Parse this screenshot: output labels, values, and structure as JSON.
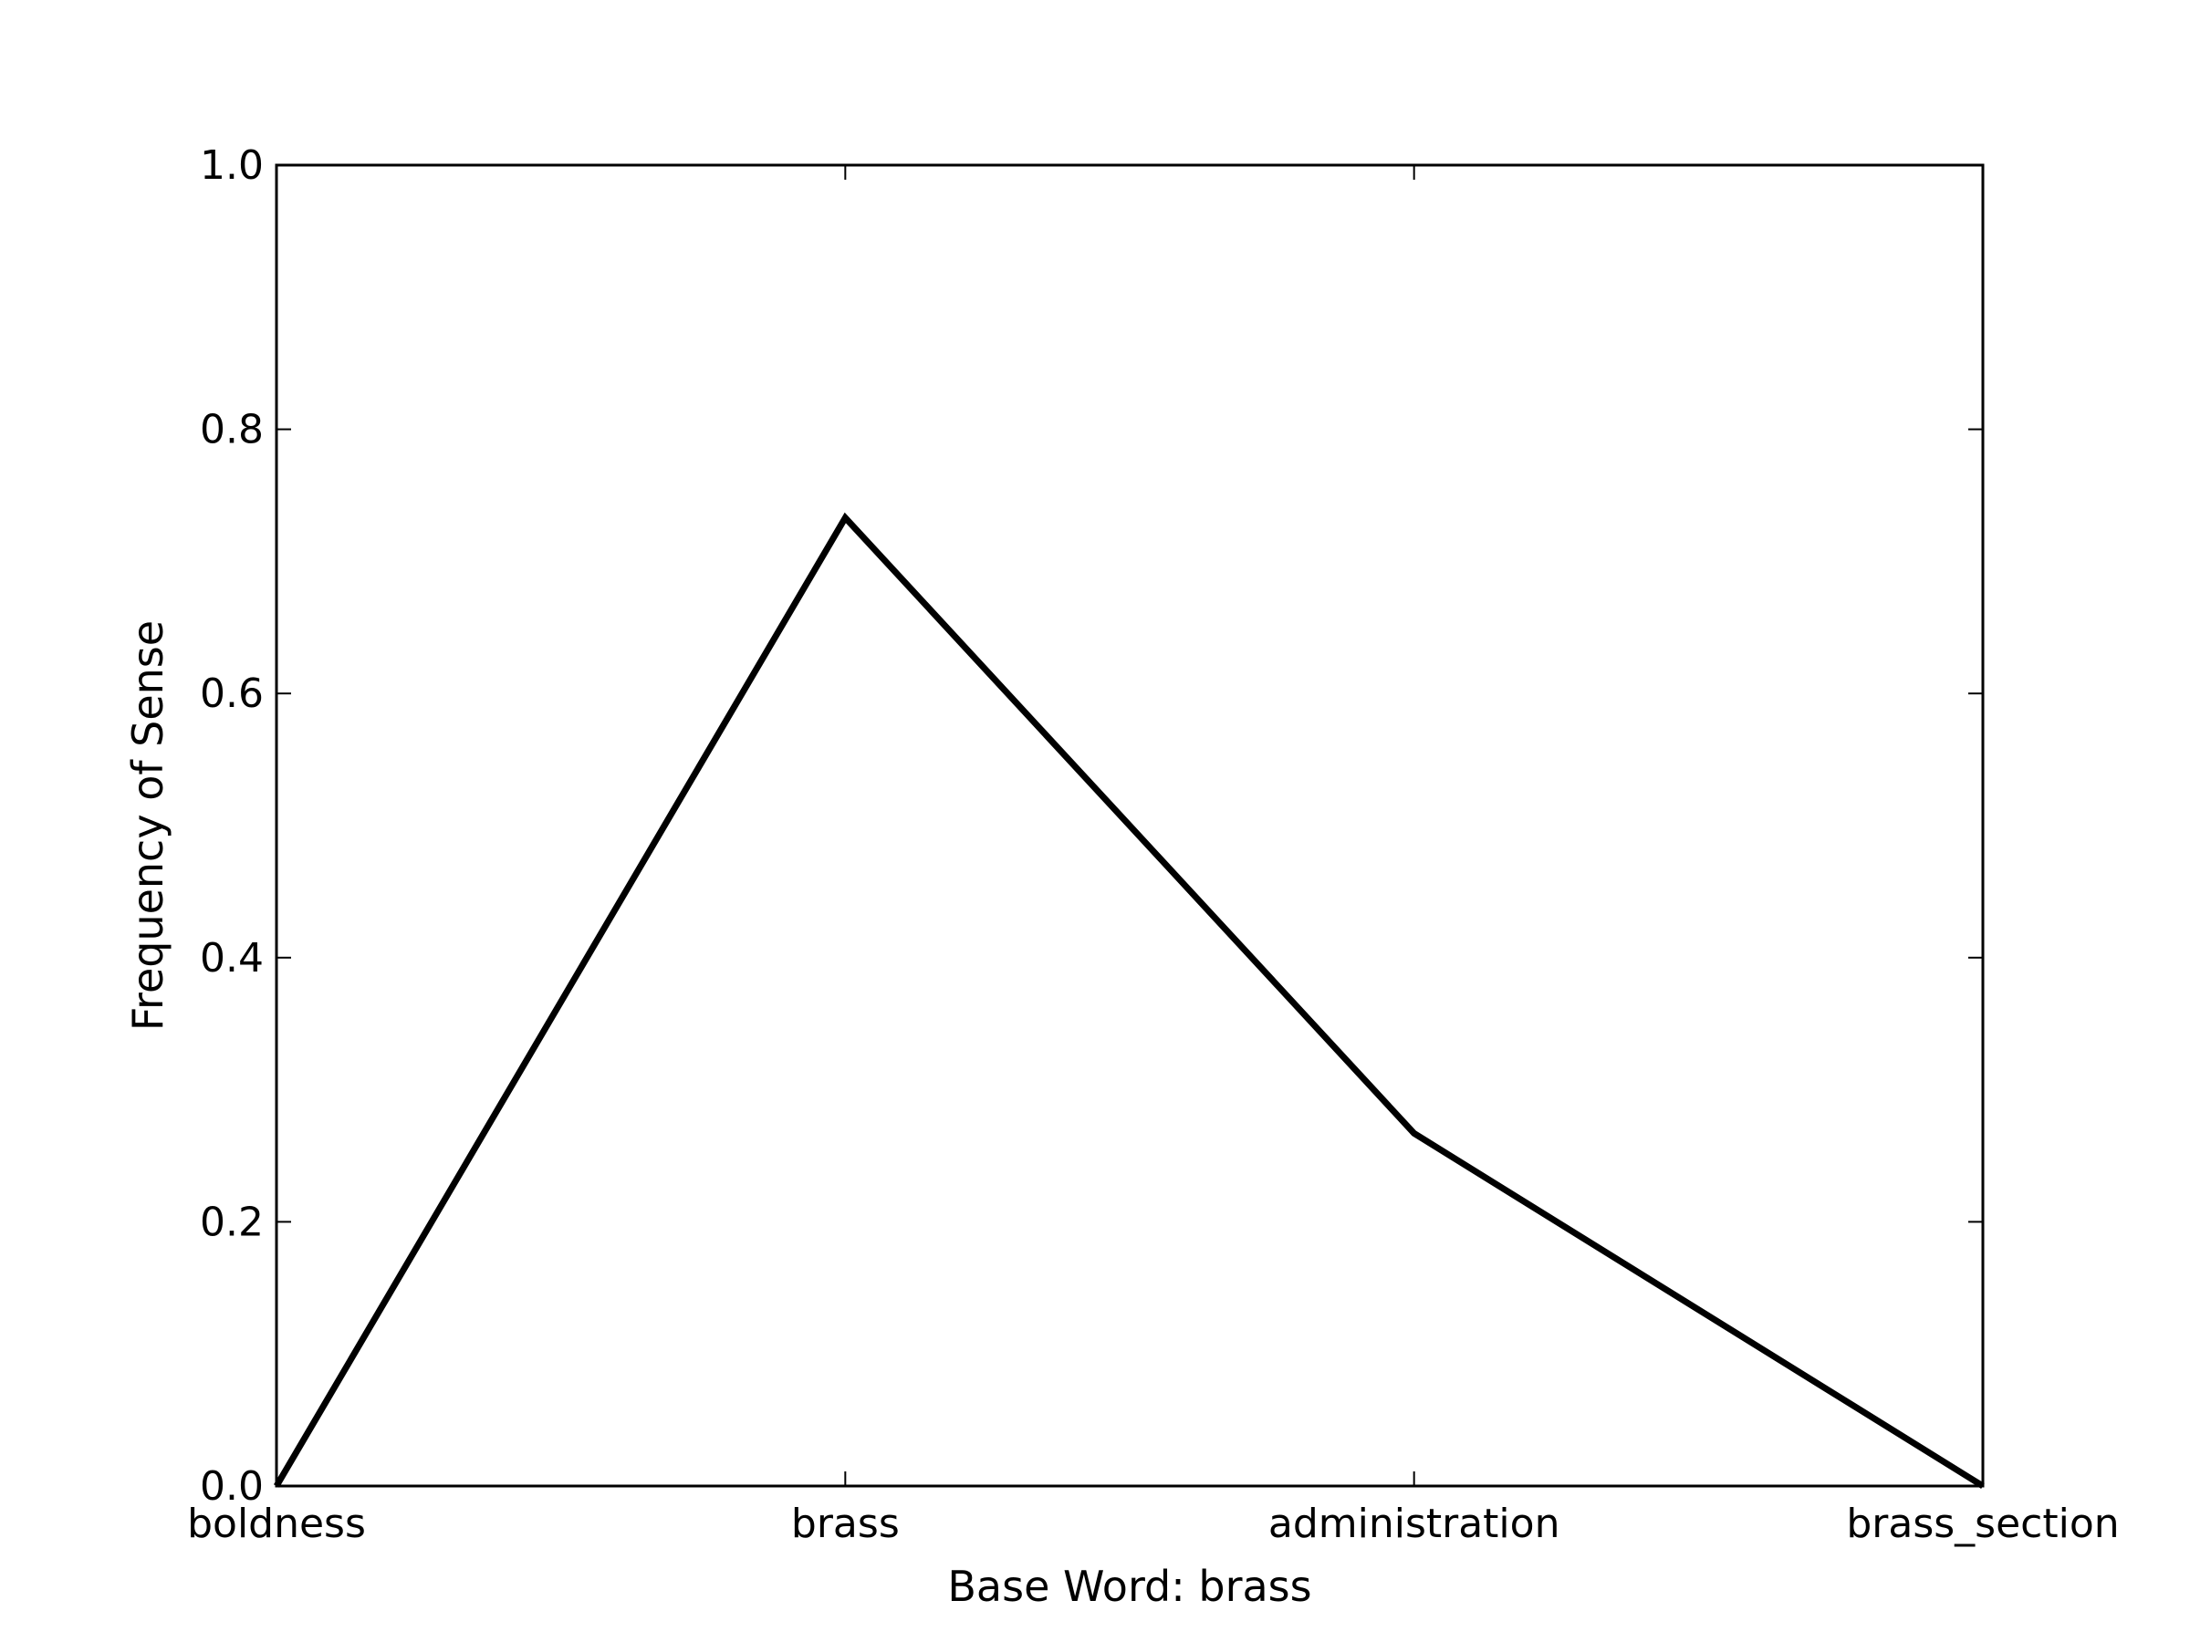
{
  "chart_data": {
    "type": "line",
    "title": "",
    "xlabel": "Base Word: brass",
    "ylabel": "Frequency of Sense",
    "categories": [
      "boldness",
      "brass",
      "administration",
      "brass_section"
    ],
    "series": [
      {
        "values": [
          0.0,
          0.733,
          0.267,
          0.0
        ],
        "color": "#000000"
      }
    ],
    "ylim": [
      0.0,
      1.0
    ],
    "yticks": [
      0.0,
      0.2,
      0.4,
      0.6,
      0.8,
      1.0
    ],
    "ytick_labels": [
      "0.0",
      "0.2",
      "0.4",
      "0.6",
      "0.8",
      "1.0"
    ],
    "grid": false,
    "legend": "none"
  }
}
